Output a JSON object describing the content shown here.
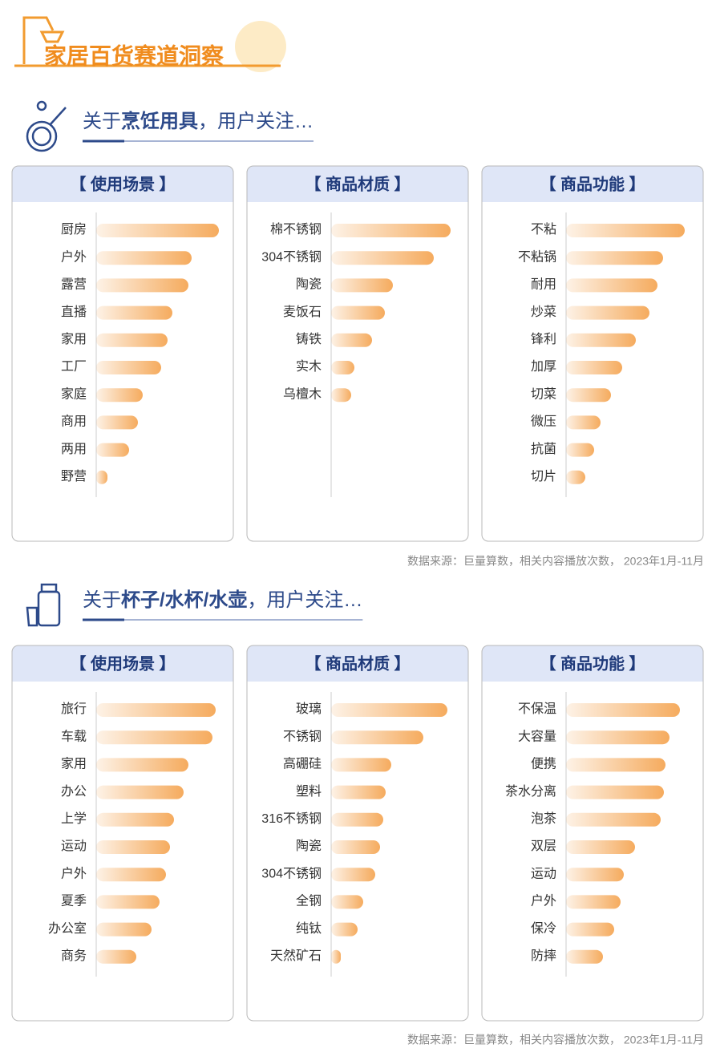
{
  "header": {
    "title": "家居百货赛道洞察"
  },
  "sections": [
    {
      "title": {
        "prefix": "关于",
        "bold": "烹饪用具",
        "suffix": "，用户关注…"
      },
      "source": "数据来源：巨量算数，相关内容播放次数， 2023年1月-11月"
    },
    {
      "title": {
        "prefix": "关于",
        "bold": "杯子/水杯/水壶",
        "suffix": "，用户关注…"
      },
      "source": "数据来源：巨量算数，相关内容播放次数， 2023年1月-11月"
    }
  ],
  "chart_data": [
    {
      "type": "bar",
      "title": "【 使用场景 】",
      "categories": [
        "厨房",
        "户外",
        "露营",
        "直播",
        "家用",
        "工厂",
        "家庭",
        "商用",
        "两用",
        "野营"
      ],
      "values": [
        153,
        119,
        115,
        95,
        89,
        81,
        58,
        52,
        41,
        14
      ],
      "color": "#f5ab5e",
      "xlim": [
        0,
        160
      ]
    },
    {
      "type": "bar",
      "title": "【 商品材质 】",
      "categories": [
        "棉不锈钢",
        "304不锈钢",
        "陶瓷",
        "麦饭石",
        "铸铁",
        "实木",
        "乌檀木"
      ],
      "values": [
        149,
        128,
        77,
        67,
        51,
        29,
        25
      ],
      "color": "#f5ab5e",
      "xlim": [
        0,
        160
      ]
    },
    {
      "type": "bar",
      "title": "【 商品功能 】",
      "categories": [
        "不粘",
        "不粘锅",
        "耐用",
        "炒菜",
        "锋利",
        "加厚",
        "切菜",
        "微压",
        "抗菌",
        "切片"
      ],
      "values": [
        148,
        121,
        114,
        104,
        87,
        70,
        56,
        43,
        35,
        24
      ],
      "color": "#f5ab5e",
      "xlim": [
        0,
        160
      ]
    },
    {
      "type": "bar",
      "title": "【 使用场景 】",
      "categories": [
        "旅行",
        "车载",
        "家用",
        "办公",
        "上学",
        "运动",
        "户外",
        "夏季",
        "办公室",
        "商务"
      ],
      "values": [
        149,
        145,
        115,
        109,
        97,
        92,
        87,
        79,
        69,
        50
      ],
      "color": "#f5ab5e",
      "xlim": [
        0,
        160
      ]
    },
    {
      "type": "bar",
      "title": "【 商品材质 】",
      "categories": [
        "玻璃",
        "不锈钢",
        "高硼硅",
        "塑料",
        "316不锈钢",
        "陶瓷",
        "304不锈钢",
        "全钢",
        "纯钛",
        "天然矿石"
      ],
      "values": [
        145,
        115,
        75,
        68,
        65,
        61,
        55,
        40,
        33,
        12
      ],
      "color": "#f5ab5e",
      "xlim": [
        0,
        160
      ]
    },
    {
      "type": "bar",
      "title": "【 商品功能 】",
      "categories": [
        "不保温",
        "大容量",
        "便携",
        "茶水分离",
        "泡茶",
        "双层",
        "运动",
        "户外",
        "保冷",
        "防摔"
      ],
      "values": [
        142,
        129,
        124,
        122,
        118,
        86,
        72,
        68,
        60,
        46
      ],
      "color": "#f5ab5e",
      "xlim": [
        0,
        160
      ]
    }
  ]
}
